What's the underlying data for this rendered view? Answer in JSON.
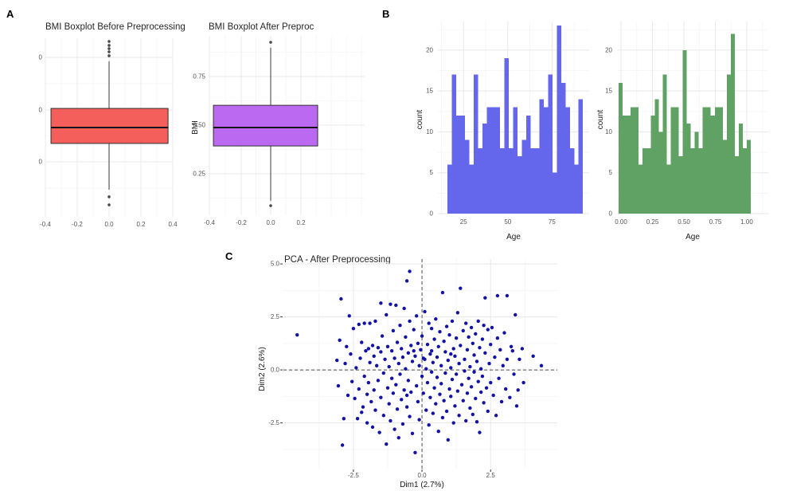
{
  "panels": {
    "a_label": "A",
    "b_label": "B",
    "c_label": "C"
  },
  "chart_data": [
    {
      "id": "bmi_before",
      "type": "boxplot",
      "title": "BMI Boxplot Before Preprocessing",
      "fill": "#f45f5c",
      "x_ticks": [
        "-0.4",
        "-0.2",
        "0.0",
        "0.2",
        "0.4"
      ],
      "y_ticks": [
        {
          "label": "0",
          "value": 0.893
        },
        {
          "label": "0",
          "value": 0.598
        },
        {
          "label": "0",
          "value": 0.308
        }
      ],
      "ylim": [
        0,
        1
      ],
      "box": {
        "q1": 0.411,
        "median": 0.5,
        "q3": 0.607,
        "whisker_low": 0.152,
        "whisker_high": 0.871,
        "outliers_high": [
          0.982,
          0.96,
          0.942,
          0.924,
          0.902
        ],
        "outliers_low": [
          0.112,
          0.067
        ]
      }
    },
    {
      "id": "bmi_after",
      "type": "boxplot",
      "title": "BMI Boxplot After Preproc",
      "y_label": "BMI",
      "fill": "#bc69f1",
      "x_ticks": [
        "-0.4",
        "-0.2",
        "0.0",
        "0.2"
      ],
      "y_ticks": [
        {
          "label": "0.75",
          "value": 0.75
        },
        {
          "label": "0.50",
          "value": 0.5
        },
        {
          "label": "0.25",
          "value": 0.25
        }
      ],
      "ylim": [
        0.037,
        0.959
      ],
      "box": {
        "q1": 0.393,
        "median": 0.488,
        "q3": 0.602,
        "whisker_low": 0.111,
        "whisker_high": 0.898,
        "outliers_high": [
          0.926
        ],
        "outliers_low": [
          0.086
        ]
      }
    },
    {
      "id": "age_before",
      "type": "histogram",
      "fill": "#6467ec",
      "y_label": "count",
      "x_label": "Age",
      "x_ticks": [
        {
          "label": "25",
          "value": 25
        },
        {
          "label": "50",
          "value": 50
        },
        {
          "label": "75",
          "value": 75
        }
      ],
      "y_ticks": [
        0,
        5,
        10,
        15,
        20
      ],
      "xlim": [
        10.5,
        96
      ],
      "ylim": [
        0,
        23.5
      ],
      "bins_start": 16,
      "bins_end": 92.5,
      "counts": [
        6,
        17,
        12,
        12,
        9,
        6,
        17,
        8,
        11,
        13,
        13,
        13,
        8,
        19,
        8,
        13,
        7,
        9,
        12,
        8,
        8,
        14,
        13,
        17,
        5,
        23,
        16,
        13,
        8,
        6,
        14
      ]
    },
    {
      "id": "age_after",
      "type": "histogram",
      "fill": "#5fa263",
      "y_label": "count",
      "x_label": "Age",
      "x_ticks": [
        {
          "label": "0.00",
          "value": 0
        },
        {
          "label": "0.25",
          "value": 0.25
        },
        {
          "label": "0.50",
          "value": 0.5
        },
        {
          "label": "0.75",
          "value": 0.75
        },
        {
          "label": "1.00",
          "value": 1
        }
      ],
      "y_ticks": [
        0,
        5,
        10,
        15,
        20
      ],
      "xlim": [
        -0.032,
        1.171
      ],
      "ylim": [
        0,
        23.5
      ],
      "bins_start": -0.019,
      "bins_end": 1.032,
      "counts": [
        16,
        12,
        12,
        13,
        13,
        6,
        8,
        8,
        12,
        14,
        10,
        17,
        6,
        13,
        13,
        7,
        20,
        11,
        8,
        10,
        8,
        13,
        13,
        12,
        13,
        13,
        9,
        17,
        22,
        7,
        11,
        8,
        9
      ]
    },
    {
      "id": "pca",
      "type": "scatter",
      "title": "PCA - After Preprocessing",
      "x_label": "Dim1 (2.7%)",
      "y_label": "Dim2 (2.6%)",
      "point_color": "#1212a5",
      "x_ticks": [
        {
          "label": "-2.5",
          "value": -2.5
        },
        {
          "label": "0.0",
          "value": 0
        },
        {
          "label": "2.5",
          "value": 2.5
        }
      ],
      "y_ticks": [
        {
          "label": "5.0",
          "value": 5
        },
        {
          "label": "2.5",
          "value": 2.5
        },
        {
          "label": "0.0",
          "value": 0
        },
        {
          "label": "-2.5",
          "value": -2.5
        }
      ],
      "xlim": [
        -5.05,
        4.93
      ],
      "ylim": [
        -4.66,
        5.23
      ],
      "ref_lines": {
        "x": 0,
        "y": 0
      },
      "points": [
        [
          -4.55,
          1.65
        ],
        [
          -3.1,
          0.45
        ],
        [
          -3.05,
          -0.75
        ],
        [
          -2.95,
          3.35
        ],
        [
          -2.9,
          -3.55
        ],
        [
          -2.85,
          -2.3
        ],
        [
          -2.8,
          0.3
        ],
        [
          -2.75,
          1.1
        ],
        [
          -2.7,
          -1.2
        ],
        [
          -2.65,
          2.55
        ],
        [
          -2.6,
          0.75
        ],
        [
          -2.55,
          -0.55
        ],
        [
          -2.5,
          1.95
        ],
        [
          -2.45,
          -1.35
        ],
        [
          -2.4,
          0.1
        ],
        [
          -2.35,
          -2.3
        ],
        [
          -2.3,
          2.15
        ],
        [
          -2.3,
          -0.9
        ],
        [
          -2.25,
          0.55
        ],
        [
          -2.2,
          1.3
        ],
        [
          -2.15,
          -1.75
        ],
        [
          -2.1,
          2.2
        ],
        [
          -2.1,
          -0.3
        ],
        [
          -2.05,
          0.9
        ],
        [
          -2.0,
          -2.5
        ],
        [
          -2.0,
          -1.15
        ],
        [
          -1.95,
          1.0
        ],
        [
          -1.95,
          -0.6
        ],
        [
          -1.9,
          2.2
        ],
        [
          -1.9,
          0.35
        ],
        [
          -1.85,
          -1.5
        ],
        [
          -1.8,
          1.15
        ],
        [
          -1.8,
          -2.7
        ],
        [
          -1.75,
          0.65
        ],
        [
          -1.75,
          -0.95
        ],
        [
          -1.7,
          2.3
        ],
        [
          -1.7,
          -1.9
        ],
        [
          -1.65,
          0.2
        ],
        [
          -1.6,
          1.05
        ],
        [
          -1.6,
          -0.5
        ],
        [
          -1.55,
          -2.95
        ],
        [
          -1.5,
          3.15
        ],
        [
          -1.5,
          0.85
        ],
        [
          -1.5,
          -1.3
        ],
        [
          -1.45,
          1.6
        ],
        [
          -1.4,
          -0.15
        ],
        [
          -1.4,
          -2.15
        ],
        [
          -1.35,
          0.5
        ],
        [
          -1.3,
          2.6
        ],
        [
          -1.3,
          -3.5
        ],
        [
          -1.25,
          1.1
        ],
        [
          -1.25,
          -0.85
        ],
        [
          -1.2,
          0.15
        ],
        [
          -1.2,
          -1.6
        ],
        [
          -1.15,
          3.1
        ],
        [
          -1.15,
          -2.4
        ],
        [
          -1.1,
          0.9
        ],
        [
          -1.1,
          -0.4
        ],
        [
          -1.05,
          1.85
        ],
        [
          -1.05,
          -1.1
        ],
        [
          -1.0,
          0.55
        ],
        [
          -1.0,
          -2.8
        ],
        [
          -0.95,
          3.05
        ],
        [
          -0.95,
          -0.7
        ],
        [
          -0.9,
          1.3
        ],
        [
          -0.9,
          -1.85
        ],
        [
          -0.85,
          0.3
        ],
        [
          -0.85,
          -3.2
        ],
        [
          -0.8,
          2.1
        ],
        [
          -0.8,
          -0.2
        ],
        [
          -0.75,
          1.0
        ],
        [
          -0.75,
          -1.4
        ],
        [
          -0.7,
          0.6
        ],
        [
          -0.7,
          -2.55
        ],
        [
          -0.65,
          2.9
        ],
        [
          -0.65,
          -0.95
        ],
        [
          -0.6,
          1.55
        ],
        [
          -0.6,
          0.05
        ],
        [
          -0.55,
          4.2
        ],
        [
          -0.55,
          -1.75
        ],
        [
          -0.5,
          0.8
        ],
        [
          -0.5,
          -0.5
        ],
        [
          -0.45,
          4.65
        ],
        [
          -0.45,
          2.3
        ],
        [
          -0.45,
          -2.2
        ],
        [
          -0.4,
          1.15
        ],
        [
          -0.4,
          -1.05
        ],
        [
          -0.35,
          0.4
        ],
        [
          -0.35,
          -3.0
        ],
        [
          -0.3,
          1.9
        ],
        [
          -0.25,
          -3.9
        ],
        [
          -0.25,
          0.65
        ],
        [
          -0.2,
          -0.75
        ],
        [
          -0.2,
          2.55
        ],
        [
          -0.15,
          1.25
        ],
        [
          -0.15,
          -1.5
        ],
        [
          -0.1,
          0.2
        ],
        [
          -0.1,
          -2.35
        ],
        [
          -0.05,
          0.95
        ],
        [
          0.0,
          -0.3
        ],
        [
          0.0,
          1.6
        ],
        [
          0.05,
          -1.1
        ],
        [
          0.1,
          0.5
        ],
        [
          0.1,
          2.75
        ],
        [
          0.15,
          -1.9
        ],
        [
          0.15,
          0.05
        ],
        [
          0.2,
          1.2
        ],
        [
          0.2,
          -0.6
        ],
        [
          0.25,
          2.2
        ],
        [
          0.25,
          -2.6
        ],
        [
          0.3,
          0.75
        ],
        [
          0.3,
          -1.3
        ],
        [
          0.35,
          1.95
        ],
        [
          0.35,
          -0.1
        ],
        [
          0.4,
          0.35
        ],
        [
          0.4,
          -2.05
        ],
        [
          0.45,
          1.45
        ],
        [
          0.45,
          -0.85
        ],
        [
          0.5,
          2.4
        ],
        [
          0.5,
          -1.6
        ],
        [
          0.55,
          0.6
        ],
        [
          0.55,
          -0.35
        ],
        [
          0.6,
          1.1
        ],
        [
          0.6,
          -2.9
        ],
        [
          0.65,
          1.8
        ],
        [
          0.65,
          -1.15
        ],
        [
          0.7,
          0.2
        ],
        [
          0.7,
          -0.65
        ],
        [
          0.75,
          3.65
        ],
        [
          0.75,
          -2.25
        ],
        [
          0.8,
          1.35
        ],
        [
          0.8,
          -1.45
        ],
        [
          0.85,
          0.85
        ],
        [
          0.85,
          -0.15
        ],
        [
          0.9,
          2.05
        ],
        [
          0.9,
          -1.95
        ],
        [
          0.95,
          0.45
        ],
        [
          0.95,
          -3.3
        ],
        [
          1.0,
          1.65
        ],
        [
          1.0,
          -0.9
        ],
        [
          1.05,
          0.1
        ],
        [
          1.05,
          -1.25
        ],
        [
          1.1,
          2.3
        ],
        [
          1.1,
          -0.45
        ],
        [
          1.15,
          1.0
        ],
        [
          1.15,
          -2.5
        ],
        [
          1.2,
          0.65
        ],
        [
          1.2,
          -1.7
        ],
        [
          1.25,
          1.5
        ],
        [
          1.25,
          -0.2
        ],
        [
          1.3,
          2.7
        ],
        [
          1.3,
          -1.0
        ],
        [
          1.35,
          0.3
        ],
        [
          1.35,
          -2.15
        ],
        [
          1.4,
          3.85
        ],
        [
          1.4,
          1.15
        ],
        [
          1.45,
          -0.7
        ],
        [
          1.5,
          1.85
        ],
        [
          1.5,
          -1.45
        ],
        [
          1.55,
          0.5
        ],
        [
          1.55,
          -0.05
        ],
        [
          1.6,
          2.2
        ],
        [
          1.6,
          -2.4
        ],
        [
          1.65,
          0.95
        ],
        [
          1.65,
          -1.1
        ],
        [
          1.7,
          1.55
        ],
        [
          1.7,
          -0.4
        ],
        [
          1.75,
          0.15
        ],
        [
          1.75,
          -1.8
        ],
        [
          1.8,
          2.0
        ],
        [
          1.8,
          -0.8
        ],
        [
          1.85,
          1.25
        ],
        [
          1.85,
          -2.1
        ],
        [
          1.9,
          0.7
        ],
        [
          1.9,
          -0.1
        ],
        [
          1.95,
          1.7
        ],
        [
          1.95,
          -1.35
        ],
        [
          2.0,
          0.4
        ],
        [
          2.0,
          -2.45
        ],
        [
          2.05,
          2.3
        ],
        [
          2.05,
          -0.55
        ],
        [
          2.1,
          1.05
        ],
        [
          2.1,
          -2.95
        ],
        [
          2.15,
          0.05
        ],
        [
          2.15,
          -1.05
        ],
        [
          2.2,
          1.45
        ],
        [
          2.2,
          -0.3
        ],
        [
          2.25,
          2.1
        ],
        [
          2.25,
          -1.55
        ],
        [
          2.3,
          3.4
        ],
        [
          2.3,
          0.8
        ],
        [
          2.35,
          -0.85
        ],
        [
          2.4,
          1.9
        ],
        [
          2.4,
          -1.95
        ],
        [
          2.45,
          0.3
        ],
        [
          2.5,
          1.2
        ],
        [
          2.5,
          -0.6
        ],
        [
          2.55,
          2.0
        ],
        [
          2.6,
          -1.2
        ],
        [
          2.65,
          0.6
        ],
        [
          2.7,
          -2.15
        ],
        [
          2.75,
          3.5
        ],
        [
          2.75,
          1.5
        ],
        [
          2.8,
          -0.4
        ],
        [
          2.85,
          0.95
        ],
        [
          2.9,
          -1.5
        ],
        [
          2.95,
          0.2
        ],
        [
          3.0,
          1.75
        ],
        [
          3.05,
          -0.9
        ],
        [
          3.1,
          3.5
        ],
        [
          3.1,
          0.5
        ],
        [
          3.2,
          -1.3
        ],
        [
          3.25,
          1.1
        ],
        [
          3.3,
          0.9
        ],
        [
          3.35,
          -0.2
        ],
        [
          3.4,
          2.6
        ],
        [
          3.45,
          -1.7
        ],
        [
          3.5,
          -0.95
        ],
        [
          3.55,
          0.5
        ],
        [
          3.65,
          1.0
        ],
        [
          3.7,
          -0.6
        ],
        [
          4.05,
          0.65
        ],
        [
          4.35,
          0.2
        ],
        [
          -3.0,
          1.4
        ],
        [
          -2.2,
          -2.0
        ],
        [
          -0.3,
          0.9
        ],
        [
          0.05,
          0.55
        ],
        [
          -0.55,
          -1.2
        ],
        [
          0.35,
          0.9
        ],
        [
          1.05,
          0.75
        ]
      ]
    }
  ]
}
